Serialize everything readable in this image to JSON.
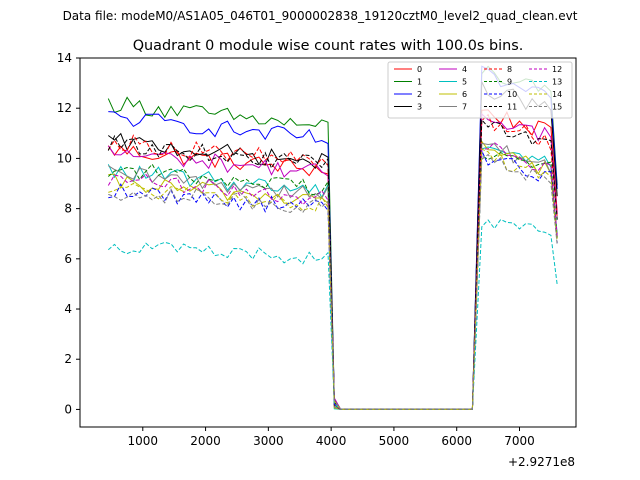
{
  "header": {
    "suptitle": "Data file: modeM0/AS1A05_046T01_9000002838_19120cztM0_level2_quad_clean.evt"
  },
  "chart_data": {
    "type": "line",
    "title": "Quadrant 0 module wise count rates with 100.0s bins.",
    "xlabel": "",
    "ylabel": "",
    "x_offset_label": "+2.9271e8",
    "xlim": [
      0,
      7900
    ],
    "ylim": [
      -0.7,
      14
    ],
    "x_ticks": [
      1000,
      2000,
      3000,
      4000,
      5000,
      6000,
      7000
    ],
    "y_ticks": [
      0,
      2,
      4,
      6,
      8,
      10,
      12,
      14
    ],
    "grid": false,
    "legend_position": "top-right",
    "series": [
      {
        "name": "0",
        "color": "#ff0000",
        "dashed": false,
        "level1": 9.5,
        "level2": 10.9,
        "noise": 0.35
      },
      {
        "name": "1",
        "color": "#008000",
        "dashed": false,
        "level1": 11.2,
        "level2": 12.4,
        "noise": 0.35
      },
      {
        "name": "2",
        "color": "#0000ff",
        "dashed": false,
        "level1": 10.7,
        "level2": 12.2,
        "noise": 0.35
      },
      {
        "name": "3",
        "color": "#000000",
        "dashed": false,
        "level1": 9.8,
        "level2": 11.8,
        "noise": 0.35
      },
      {
        "name": "4",
        "color": "#bf00bf",
        "dashed": false,
        "level1": 9.4,
        "level2": 10.8,
        "noise": 0.35
      },
      {
        "name": "5",
        "color": "#00bfbf",
        "dashed": false,
        "level1": 8.7,
        "level2": 9.7,
        "noise": 0.35
      },
      {
        "name": "6",
        "color": "#bfbf00",
        "dashed": false,
        "level1": 8.3,
        "level2": 9.5,
        "noise": 0.35
      },
      {
        "name": "7",
        "color": "#808080",
        "dashed": false,
        "level1": 8.6,
        "level2": 9.6,
        "noise": 0.35
      },
      {
        "name": "8",
        "color": "#ff0000",
        "dashed": true,
        "level1": 9.8,
        "level2": 10.6,
        "noise": 0.35
      },
      {
        "name": "9",
        "color": "#008000",
        "dashed": true,
        "level1": 8.8,
        "level2": 9.5,
        "noise": 0.35
      },
      {
        "name": "10",
        "color": "#0000ff",
        "dashed": true,
        "level1": 8.0,
        "level2": 9.2,
        "noise": 0.35
      },
      {
        "name": "11",
        "color": "#000000",
        "dashed": true,
        "level1": 9.7,
        "level2": 10.5,
        "noise": 0.35
      },
      {
        "name": "12",
        "color": "#bf00bf",
        "dashed": true,
        "level1": 8.4,
        "level2": 9.6,
        "noise": 0.35
      },
      {
        "name": "13",
        "color": "#00bfbf",
        "dashed": true,
        "level1": 6.0,
        "level2": 6.9,
        "noise": 0.3
      },
      {
        "name": "14",
        "color": "#bfbf00",
        "dashed": true,
        "level1": 8.1,
        "level2": 9.3,
        "noise": 0.35
      },
      {
        "name": "15",
        "color": "#808080",
        "dashed": true,
        "level1": 8.0,
        "level2": 9.1,
        "noise": 0.35
      }
    ],
    "segments": {
      "x_start": 450,
      "bin_width": 100,
      "gap_start": 4050,
      "gap_end": 6300,
      "x_end": 7600,
      "gap_value": 0.0
    }
  }
}
